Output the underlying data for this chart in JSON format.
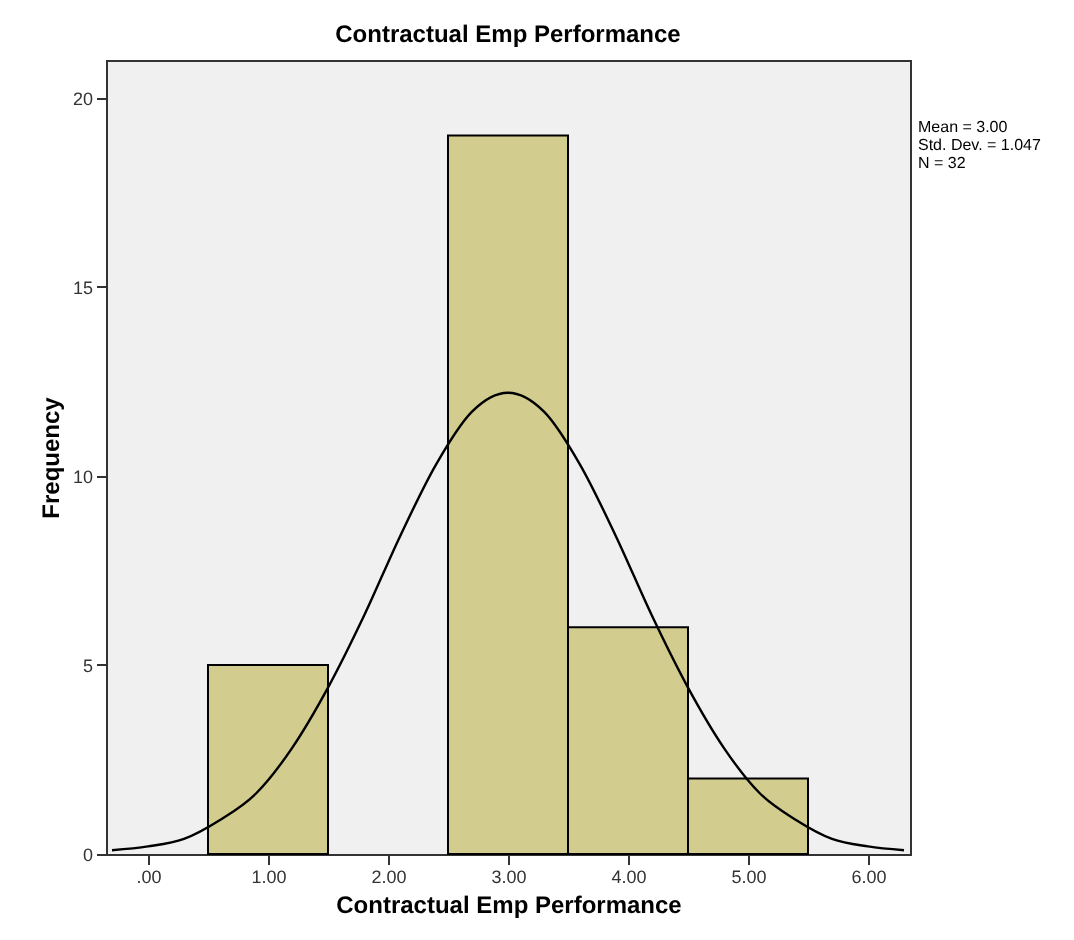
{
  "chart_data": {
    "type": "histogram",
    "title": "Contractual Emp Performance",
    "xlabel": "Contractual Emp Performance",
    "ylabel": "Frequency",
    "annotations": [
      "Mean = 3.00",
      "Std. Dev. = 1.047",
      "N = 32"
    ],
    "series": [
      {
        "bins": [
          0.5,
          1.5,
          2.5,
          3.5,
          4.5,
          5.5
        ],
        "values": [
          5,
          0,
          19,
          6,
          2
        ],
        "color": "#d2cc8f"
      },
      {
        "type": "line",
        "color": "#000000",
        "x": [
          -0.3,
          0,
          0.3,
          0.6,
          0.9,
          1.2,
          1.5,
          1.8,
          2.1,
          2.4,
          2.7,
          3.0,
          3.3,
          3.6,
          3.9,
          4.2,
          4.5,
          4.8,
          5.1,
          5.4,
          5.7,
          6.0,
          6.3
        ],
        "values": [
          0.1,
          0.2,
          0.4,
          0.9,
          1.6,
          2.8,
          4.4,
          6.3,
          8.4,
          10.3,
          11.7,
          12.2,
          11.7,
          10.3,
          8.4,
          6.3,
          4.4,
          2.8,
          1.6,
          0.9,
          0.4,
          0.2,
          0.1
        ]
      }
    ],
    "xlim": [
      -0.35,
      6.35
    ],
    "xticks": [
      {
        "value": 0,
        "label": ".00"
      },
      {
        "value": 1,
        "label": "1.00"
      },
      {
        "value": 2,
        "label": "2.00"
      },
      {
        "value": 3,
        "label": "3.00"
      },
      {
        "value": 4,
        "label": "4.00"
      },
      {
        "value": 5,
        "label": "5.00"
      },
      {
        "value": 6,
        "label": "6.00"
      }
    ],
    "ylim": [
      0,
      21
    ],
    "yticks": [
      0,
      5,
      10,
      15,
      20
    ],
    "grid": false
  }
}
